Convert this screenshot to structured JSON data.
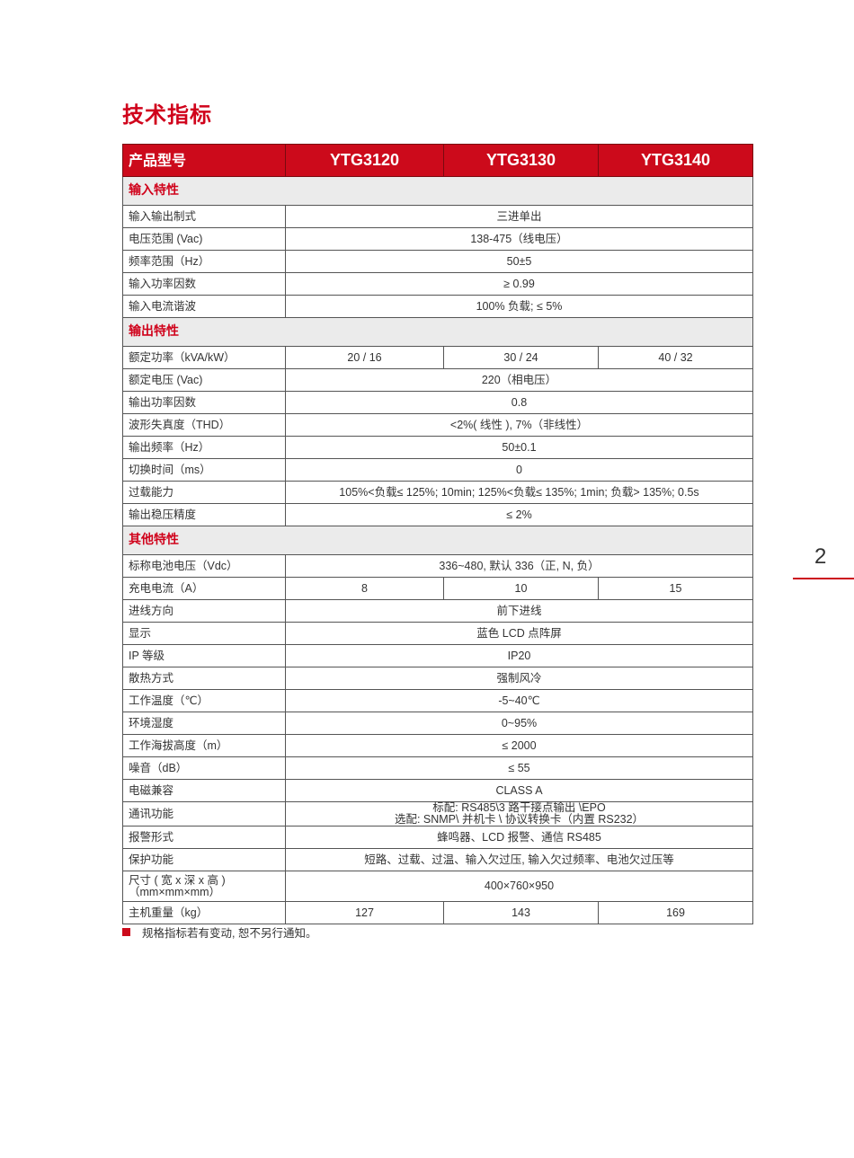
{
  "title": "技术指标",
  "page_number": "2",
  "accent_color": "#cc0a1b",
  "header": {
    "label": "产品型号",
    "models": [
      "YTG3120",
      "YTG3130",
      "YTG3140"
    ]
  },
  "sections": [
    {
      "name": "输入特性",
      "rows": [
        {
          "label": "输入输出制式",
          "values": [
            "三进单出"
          ]
        },
        {
          "label": "电压范围 (Vac)",
          "values": [
            "138-475（线电压）"
          ]
        },
        {
          "label": "频率范围（Hz）",
          "values": [
            "50±5"
          ]
        },
        {
          "label": "输入功率因数",
          "values": [
            "≥ 0.99"
          ]
        },
        {
          "label": "输入电流谐波",
          "values": [
            "100% 负载; ≤ 5%"
          ]
        }
      ]
    },
    {
      "name": "输出特性",
      "rows": [
        {
          "label": "额定功率（kVA/kW）",
          "values": [
            "20 / 16",
            "30 / 24",
            "40 / 32"
          ]
        },
        {
          "label": "额定电压 (Vac)",
          "values": [
            "220（相电压）"
          ]
        },
        {
          "label": "输出功率因数",
          "values": [
            "0.8"
          ]
        },
        {
          "label": "波形失真度（THD）",
          "values": [
            "<2%( 线性 ), 7%（非线性）"
          ]
        },
        {
          "label": "输出频率（Hz）",
          "values": [
            "50±0.1"
          ]
        },
        {
          "label": "切换时间（ms）",
          "values": [
            "0"
          ]
        },
        {
          "label": "过载能力",
          "values": [
            "105%<负载≤ 125%; 10min; 125%<负载≤ 135%; 1min; 负载> 135%; 0.5s"
          ]
        },
        {
          "label": "输出稳压精度",
          "values": [
            "≤ 2%"
          ]
        }
      ]
    },
    {
      "name": "其他特性",
      "rows": [
        {
          "label": "标称电池电压（Vdc）",
          "values": [
            "336~480, 默认 336（正, N, 负）"
          ]
        },
        {
          "label": "充电电流（A）",
          "values": [
            "8",
            "10",
            "15"
          ]
        },
        {
          "label": "进线方向",
          "values": [
            "前下进线"
          ]
        },
        {
          "label": "显示",
          "values": [
            "蓝色 LCD 点阵屏"
          ]
        },
        {
          "label": "IP 等级",
          "values": [
            "IP20"
          ]
        },
        {
          "label": "散热方式",
          "values": [
            "强制风冷"
          ]
        },
        {
          "label": "工作温度（℃）",
          "values": [
            "-5~40℃"
          ]
        },
        {
          "label": "环境湿度",
          "values": [
            "0~95%"
          ]
        },
        {
          "label": "工作海拔高度（m）",
          "values": [
            "≤ 2000"
          ]
        },
        {
          "label": "噪音（dB）",
          "values": [
            "≤ 55"
          ]
        },
        {
          "label": "电磁兼容",
          "values": [
            "CLASS A"
          ]
        },
        {
          "label": "通讯功能",
          "values": [
            "标配: RS485\\3 路干接点输出 \\EPO\n选配: SNMP\\ 并机卡 \\ 协议转换卡（内置 RS232）"
          ]
        },
        {
          "label": "报警形式",
          "values": [
            "蜂鸣器、LCD 报警、通信 RS485"
          ]
        },
        {
          "label": "保护功能",
          "values": [
            "短路、过载、过温、输入欠过压, 输入欠过频率、电池欠过压等"
          ]
        },
        {
          "label": "尺寸 ( 宽 x 深 x 高 )\n（mm×mm×mm）",
          "values": [
            "400×760×950"
          ]
        },
        {
          "label": "主机重量（kg）",
          "values": [
            "127",
            "143",
            "169"
          ]
        }
      ]
    }
  ],
  "note": "规格指标若有变动, 恕不另行通知。"
}
